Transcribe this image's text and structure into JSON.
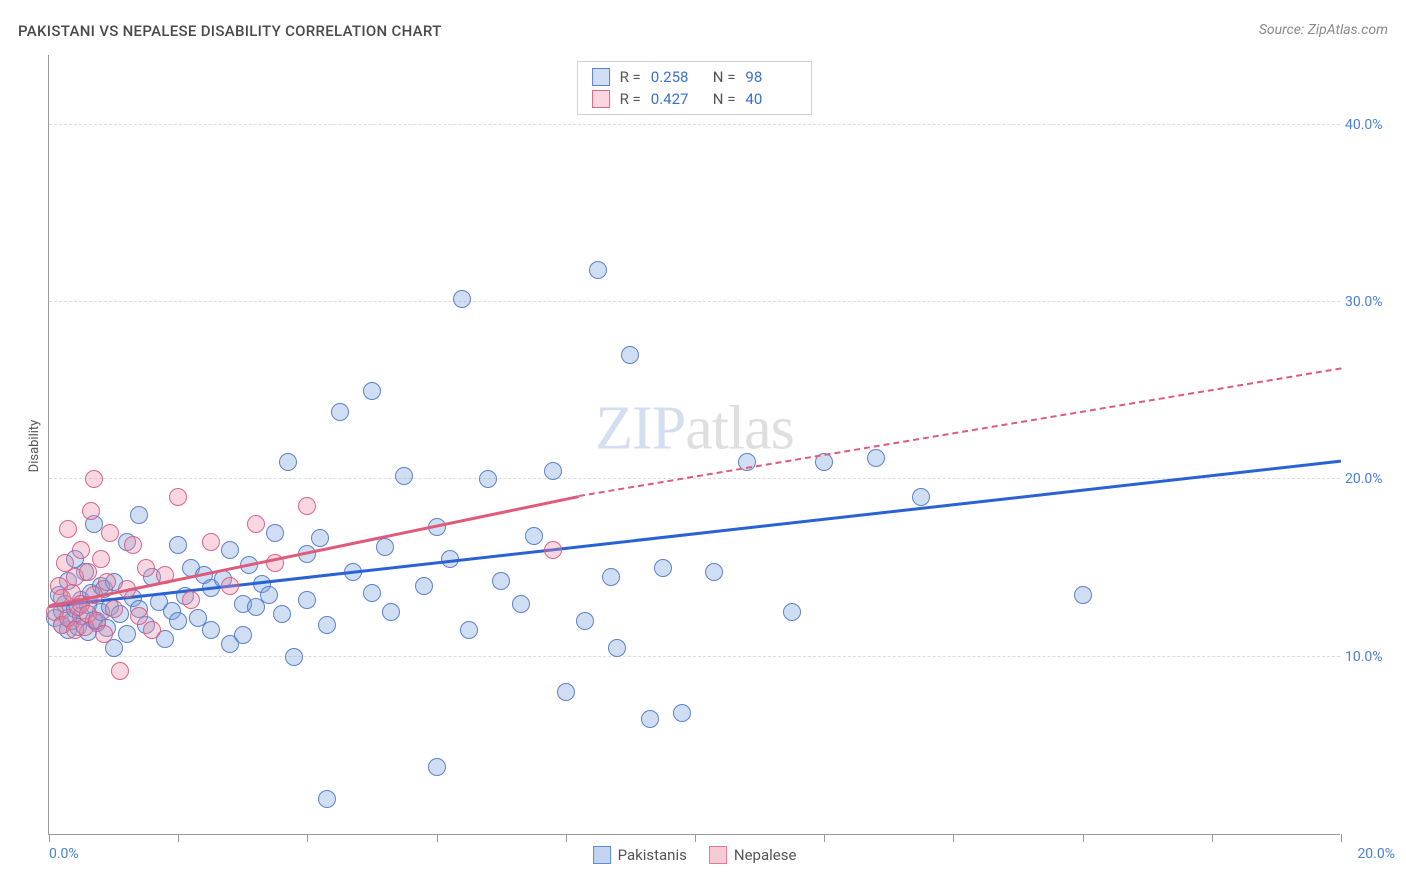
{
  "header": {
    "title": "PAKISTANI VS NEPALESE DISABILITY CORRELATION CHART",
    "source_prefix": "Source: ",
    "source_name": "ZipAtlas.com"
  },
  "watermark": {
    "part1": "ZIP",
    "part2": "atlas"
  },
  "chart": {
    "type": "scatter",
    "background_color": "#ffffff",
    "grid_color": "#dcdcdc",
    "axis_color": "#999999",
    "ylabel": "Disability",
    "label_fontsize": 13,
    "ytick_label_color": "#4a7fd8",
    "xlim": [
      0,
      20
    ],
    "ylim": [
      0,
      44
    ],
    "xticks": [
      0,
      2,
      4,
      6,
      8,
      10,
      12,
      14,
      16,
      18,
      20
    ],
    "xtick_labels": {
      "start": "0.0%",
      "end": "20.0%"
    },
    "yticks": [
      {
        "v": 10,
        "label": "10.0%"
      },
      {
        "v": 20,
        "label": "20.0%"
      },
      {
        "v": 30,
        "label": "30.0%"
      },
      {
        "v": 40,
        "label": "40.0%"
      }
    ],
    "marker_radius": 9,
    "marker_border_alpha": 0.9,
    "marker_fill_alpha": 0.35,
    "series": [
      {
        "name": "Pakistanis",
        "color": "#5b8cd8",
        "fill": "rgba(120,160,220,0.35)",
        "border": "rgba(80,120,200,0.9)",
        "R": "0.258",
        "N": "98",
        "trend": {
          "x1": 0,
          "y1": 12.8,
          "x2": 20,
          "y2": 21.0,
          "dash_from": 20,
          "line_color": "#2a62d4",
          "line_width": 2.5
        },
        "points": [
          [
            0.1,
            12.2
          ],
          [
            0.15,
            13.5
          ],
          [
            0.2,
            11.8
          ],
          [
            0.2,
            12.6
          ],
          [
            0.25,
            13.0
          ],
          [
            0.3,
            14.3
          ],
          [
            0.3,
            11.5
          ],
          [
            0.35,
            12.0
          ],
          [
            0.4,
            12.7
          ],
          [
            0.4,
            15.5
          ],
          [
            0.45,
            11.7
          ],
          [
            0.5,
            13.2
          ],
          [
            0.5,
            12.3
          ],
          [
            0.55,
            14.8
          ],
          [
            0.6,
            11.4
          ],
          [
            0.6,
            12.9
          ],
          [
            0.65,
            13.6
          ],
          [
            0.7,
            12.1
          ],
          [
            0.7,
            17.5
          ],
          [
            0.75,
            11.9
          ],
          [
            0.8,
            14.0
          ],
          [
            0.8,
            12.5
          ],
          [
            0.85,
            13.8
          ],
          [
            0.9,
            11.6
          ],
          [
            0.95,
            12.8
          ],
          [
            1.0,
            10.5
          ],
          [
            1.0,
            14.2
          ],
          [
            1.1,
            12.4
          ],
          [
            1.2,
            16.5
          ],
          [
            1.2,
            11.3
          ],
          [
            1.3,
            13.3
          ],
          [
            1.4,
            12.7
          ],
          [
            1.4,
            18.0
          ],
          [
            1.5,
            11.8
          ],
          [
            1.6,
            14.5
          ],
          [
            1.7,
            13.1
          ],
          [
            1.8,
            11.0
          ],
          [
            1.9,
            12.6
          ],
          [
            2.0,
            12.0
          ],
          [
            2.0,
            16.3
          ],
          [
            2.1,
            13.4
          ],
          [
            2.2,
            15.0
          ],
          [
            2.3,
            12.2
          ],
          [
            2.4,
            14.6
          ],
          [
            2.5,
            11.5
          ],
          [
            2.5,
            13.9
          ],
          [
            2.7,
            14.4
          ],
          [
            2.8,
            10.7
          ],
          [
            2.8,
            16.0
          ],
          [
            3.0,
            13.0
          ],
          [
            3.0,
            11.2
          ],
          [
            3.1,
            15.2
          ],
          [
            3.2,
            12.8
          ],
          [
            3.3,
            14.1
          ],
          [
            3.4,
            13.5
          ],
          [
            3.5,
            17.0
          ],
          [
            3.6,
            12.4
          ],
          [
            3.7,
            21.0
          ],
          [
            3.8,
            10.0
          ],
          [
            4.0,
            15.8
          ],
          [
            4.0,
            13.2
          ],
          [
            4.2,
            16.7
          ],
          [
            4.3,
            11.8
          ],
          [
            4.5,
            23.8
          ],
          [
            4.7,
            14.8
          ],
          [
            5.0,
            13.6
          ],
          [
            5.0,
            25.0
          ],
          [
            5.2,
            16.2
          ],
          [
            5.3,
            12.5
          ],
          [
            5.5,
            20.2
          ],
          [
            5.8,
            14.0
          ],
          [
            6.0,
            17.3
          ],
          [
            6.0,
            3.8
          ],
          [
            6.2,
            15.5
          ],
          [
            6.4,
            30.2
          ],
          [
            6.5,
            11.5
          ],
          [
            6.8,
            20.0
          ],
          [
            7.0,
            14.3
          ],
          [
            7.3,
            13.0
          ],
          [
            7.5,
            16.8
          ],
          [
            7.8,
            20.5
          ],
          [
            8.0,
            8.0
          ],
          [
            8.3,
            12.0
          ],
          [
            8.5,
            31.8
          ],
          [
            8.7,
            14.5
          ],
          [
            8.8,
            10.5
          ],
          [
            9.0,
            27.0
          ],
          [
            9.3,
            6.5
          ],
          [
            9.5,
            15.0
          ],
          [
            9.8,
            6.8
          ],
          [
            10.3,
            14.8
          ],
          [
            10.8,
            21.0
          ],
          [
            11.5,
            12.5
          ],
          [
            12.0,
            21.0
          ],
          [
            12.8,
            21.2
          ],
          [
            13.5,
            19.0
          ],
          [
            16.0,
            13.5
          ],
          [
            4.3,
            2.0
          ]
        ]
      },
      {
        "name": "Nepalese",
        "color": "#e27a96",
        "fill": "rgba(235,140,165,0.35)",
        "border": "rgba(215,90,130,0.9)",
        "R": "0.427",
        "N": "40",
        "trend": {
          "x1": 0,
          "y1": 12.8,
          "x2": 8.2,
          "y2": 19.0,
          "dash_from": 8.2,
          "dash_x2": 20,
          "dash_y2": 26.2,
          "line_color": "#e05a7a",
          "line_width": 2.5
        },
        "points": [
          [
            0.1,
            12.5
          ],
          [
            0.15,
            14.0
          ],
          [
            0.2,
            11.8
          ],
          [
            0.2,
            13.3
          ],
          [
            0.25,
            15.3
          ],
          [
            0.3,
            12.2
          ],
          [
            0.3,
            17.2
          ],
          [
            0.35,
            13.6
          ],
          [
            0.4,
            11.5
          ],
          [
            0.4,
            14.5
          ],
          [
            0.45,
            12.8
          ],
          [
            0.5,
            16.0
          ],
          [
            0.5,
            13.0
          ],
          [
            0.55,
            11.7
          ],
          [
            0.6,
            14.8
          ],
          [
            0.6,
            12.4
          ],
          [
            0.65,
            18.2
          ],
          [
            0.7,
            13.5
          ],
          [
            0.7,
            20.0
          ],
          [
            0.75,
            12.0
          ],
          [
            0.8,
            15.5
          ],
          [
            0.85,
            11.3
          ],
          [
            0.9,
            14.2
          ],
          [
            0.95,
            17.0
          ],
          [
            1.0,
            12.7
          ],
          [
            1.1,
            9.2
          ],
          [
            1.2,
            13.8
          ],
          [
            1.3,
            16.3
          ],
          [
            1.4,
            12.3
          ],
          [
            1.5,
            15.0
          ],
          [
            1.6,
            11.5
          ],
          [
            1.8,
            14.6
          ],
          [
            2.0,
            19.0
          ],
          [
            2.2,
            13.2
          ],
          [
            2.5,
            16.5
          ],
          [
            2.8,
            14.0
          ],
          [
            3.2,
            17.5
          ],
          [
            3.5,
            15.3
          ],
          [
            4.0,
            18.5
          ],
          [
            7.8,
            16.0
          ]
        ]
      }
    ],
    "legend_bottom": [
      {
        "swatch_fill": "rgba(120,160,220,0.45)",
        "swatch_border": "#5b8cd8",
        "label": "Pakistanis"
      },
      {
        "swatch_fill": "rgba(235,140,165,0.45)",
        "swatch_border": "#e27a96",
        "label": "Nepalese"
      }
    ]
  }
}
